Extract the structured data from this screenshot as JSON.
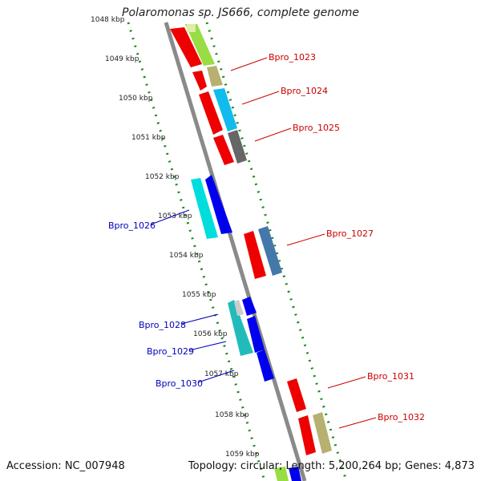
{
  "title": "Polaromonas sp. JS666, complete genome",
  "footer": {
    "accession": "Accession: NC_007948",
    "summary": "Topology: circular; Length: 5,200,264 bp; Genes: 4,873"
  },
  "ticks": [
    "1048 kbp",
    "1049 kbp",
    "1050 kbp",
    "1051 kbp",
    "1052 kbp",
    "1053 kbp",
    "1054 kbp",
    "1055 kbp",
    "1056 kbp",
    "1057 kbp",
    "1058 kbp",
    "1059 kbp"
  ],
  "gene_labels_right": [
    "Bpro_1023",
    "Bpro_1024",
    "Bpro_1025",
    "Bpro_1027",
    "Bpro_1031",
    "Bpro_1032"
  ],
  "gene_labels_left": [
    "Bpro_1026",
    "Bpro_1028",
    "Bpro_1029",
    "Bpro_1030"
  ],
  "colors": {
    "backbone": "#8a8a8a",
    "tick_green": "#1a8a1a",
    "label_red": "#cc0000",
    "label_blue": "#0000bb",
    "red": "#ee0000",
    "blue": "#0000ee",
    "cyan": "#00dddd",
    "teal": "#22bbbb",
    "steel": "#4477aa",
    "sky": "#11bbee",
    "gray": "#666666",
    "khaki": "#b8b070",
    "lime": "#99dd44",
    "lightgray": "#cccccc"
  }
}
